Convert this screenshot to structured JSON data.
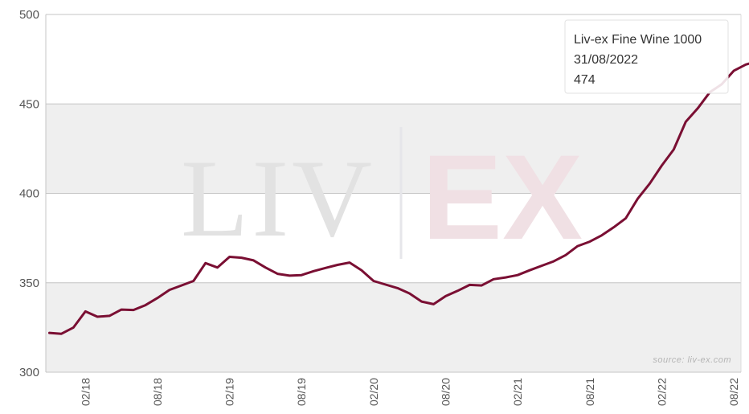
{
  "chart_data": {
    "type": "line",
    "title": "",
    "xlabel": "",
    "ylabel": "",
    "ylim": [
      300,
      500
    ],
    "y_ticks": [
      300,
      350,
      400,
      450,
      500
    ],
    "x_ticks": [
      {
        "label": "02/18",
        "index": 3
      },
      {
        "label": "08/18",
        "index": 9
      },
      {
        "label": "02/19",
        "index": 15
      },
      {
        "label": "08/19",
        "index": 21
      },
      {
        "label": "02/20",
        "index": 27
      },
      {
        "label": "08/20",
        "index": 33
      },
      {
        "label": "02/21",
        "index": 39
      },
      {
        "label": "08/21",
        "index": 45
      },
      {
        "label": "02/22",
        "index": 51
      },
      {
        "label": "08/22",
        "index": 57
      }
    ],
    "x_range": [
      -0.3,
      57.6
    ],
    "grid": "horizontal",
    "banded_background": true,
    "series": [
      {
        "name": "Liv-ex Fine Wine 1000",
        "color": "#7a0f33",
        "values": [
          322,
          321.5,
          325,
          334,
          331,
          331.5,
          335,
          334.8,
          337.5,
          341.5,
          346,
          348.5,
          351,
          361,
          358.5,
          364.5,
          364,
          362.5,
          358.5,
          355,
          354,
          354.3,
          356.5,
          358.3,
          360,
          361.3,
          357,
          351,
          349,
          347,
          344,
          339.5,
          338,
          342.5,
          345.5,
          348.8,
          348.5,
          352,
          353,
          354.3,
          357,
          359.5,
          362,
          365.5,
          370.5,
          373,
          376.5,
          381,
          386,
          397,
          405.5,
          415.5,
          424.5,
          440,
          447.5,
          456.5,
          461,
          468.5,
          472,
          473.8,
          474.3
        ]
      }
    ],
    "tooltip": {
      "series_name": "Liv-ex Fine Wine 1000",
      "date": "31/08/2022",
      "value": "474"
    },
    "source_note": "source: liv-ex.com",
    "watermark": {
      "left": "LIV",
      "right": "EX"
    }
  }
}
